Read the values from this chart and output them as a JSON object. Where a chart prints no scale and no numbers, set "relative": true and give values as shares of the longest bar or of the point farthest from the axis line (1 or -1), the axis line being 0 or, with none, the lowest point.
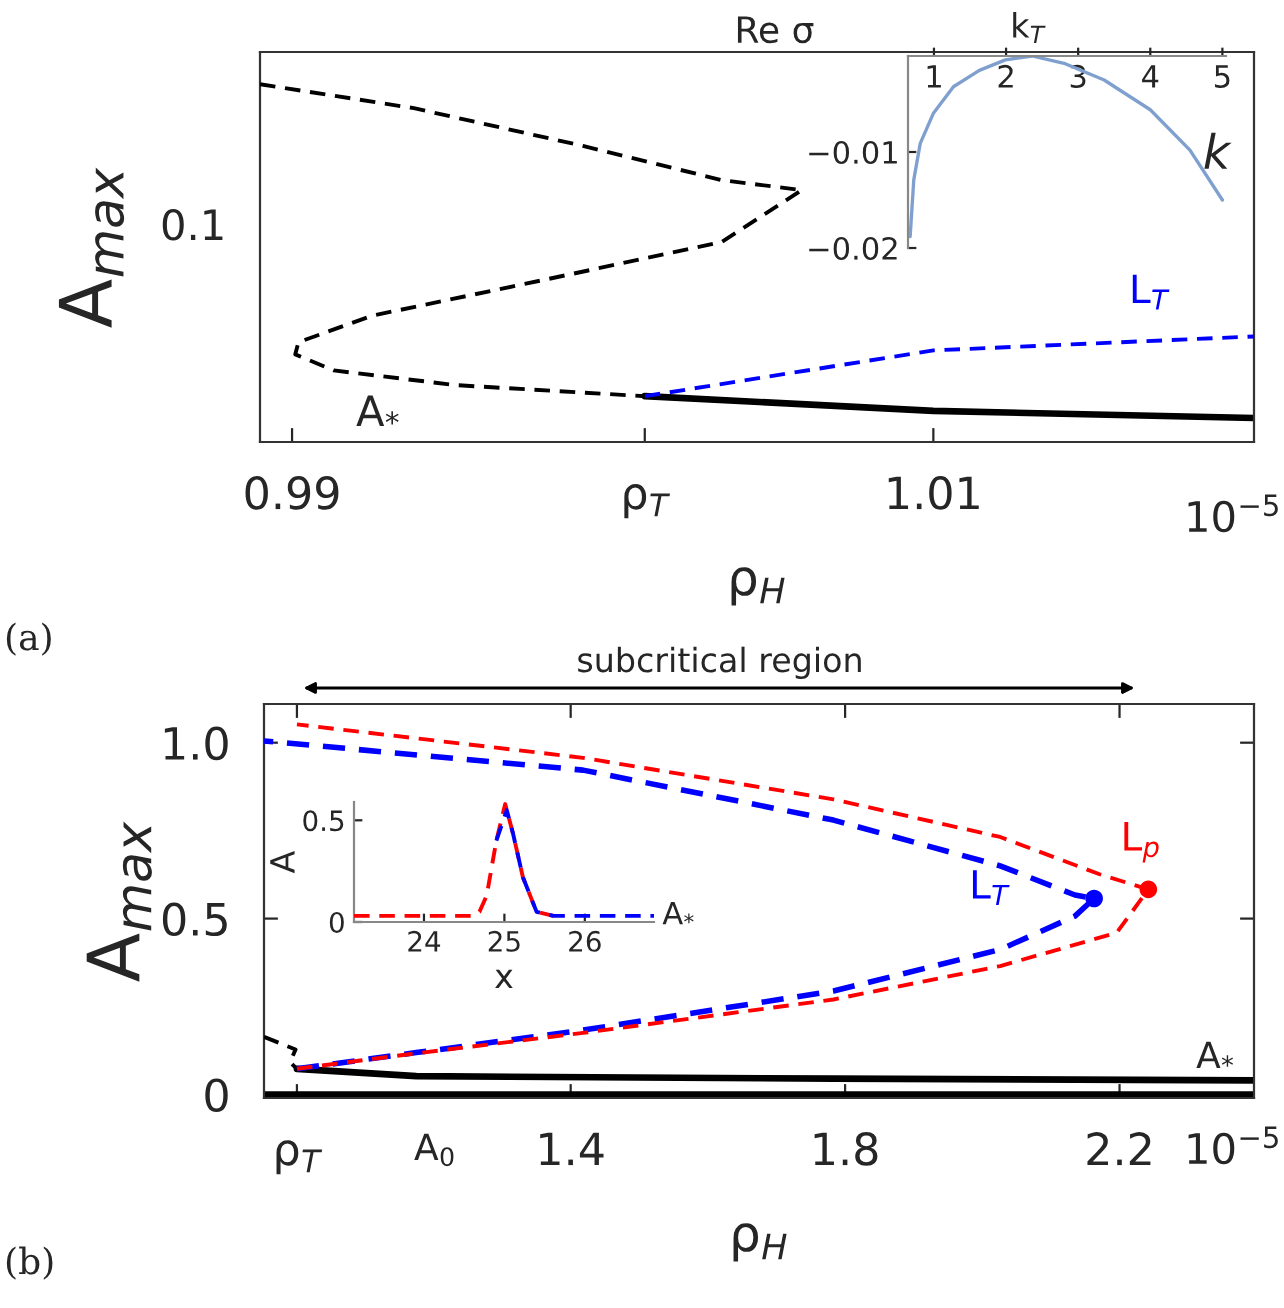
{
  "chart_data": [
    {
      "type": "line",
      "relative": true,
      "xlabel": "ρ$_{H}$",
      "ylabel": "A$_{max}$",
      "xlim": [
        0.989,
        1.02
      ],
      "xticks": [
        0.99,
        {
          "value": 1.001,
          "label": "ρ$_{T}$"
        },
        1.01
      ],
      "series": [
        {
          "color": "#000000",
          "line_style": "dashed",
          "x": [
            0.989,
            0.9938,
            0.9991,
            1.0034,
            1.0059,
            1.0034,
            0.9978,
            0.9925,
            0.9902,
            0.9901,
            0.9913,
            0.9951,
            1.001
          ],
          "values": [
            1,
            0.933,
            0.827,
            0.732,
            0.704,
            0.559,
            0.452,
            0.353,
            0.279,
            0.245,
            0.2,
            0.159,
            0.128
          ]
        },
        {
          "color": "#000000",
          "line_style": "solid",
          "x": [
            1.001,
            1.01,
            1.02
          ],
          "values": [
            0.128,
            0.087,
            0.067
          ]
        },
        {
          "name": "L$_{T}$",
          "color": "#0000ff",
          "line_style": "dashed",
          "x": [
            1.001,
            1.01,
            1.02
          ],
          "values": [
            0.128,
            0.256,
            0.295
          ]
        }
      ],
      "annotations": [
        "(a)",
        "10$^{−5}$",
        "A$_{*}$",
        "0.1"
      ]
    },
    {
      "type": "line",
      "xlabel": "k",
      "ylabel": "Re σ",
      "xlim": [
        0.64,
        5.05
      ],
      "ylim": [
        -0.02,
        0
      ],
      "xticks": [
        1,
        2,
        3,
        4,
        5
      ],
      "yticks": [
        {
          "value": -0.01,
          "label": "−0.01"
        },
        {
          "value": -0.02,
          "label": "−0.02"
        }
      ],
      "series": [
        {
          "color": "#7fa0cf",
          "line_style": "solid",
          "x": [
            0.67,
            0.72,
            0.81,
            0.99,
            1.27,
            1.63,
            1.99,
            2.36,
            2.82,
            3.36,
            4.0,
            4.55,
            5.0
          ],
          "values": [
            -0.0188,
            -0.0129,
            -0.0091,
            -0.006,
            -0.0032,
            -0.0015,
            -0.0004,
            0,
            -0.0008,
            -0.0025,
            -0.0056,
            -0.0098,
            -0.015
          ]
        }
      ],
      "annotations": [
        {
          "text": "k$_{T}$",
          "x": 2.3,
          "y": 0
        }
      ]
    },
    {
      "type": "line",
      "xlabel": "ρ$_{H}$",
      "ylabel": "A$_{max}$",
      "xlim": [
        0.953,
        2.396
      ],
      "ylim": [
        -0.01,
        1.11
      ],
      "xticks": [
        {
          "value": 1.001,
          "label": "ρ$_{T}$"
        },
        1.4,
        1.8,
        2.2
      ],
      "yticks": [
        0,
        0.5,
        {
          "value": 1,
          "label": "1.0"
        }
      ],
      "series": [
        {
          "name": "L$_{p}$",
          "color": "#ff0000",
          "line_style": "dashed",
          "x": [
            1.001,
            1.175,
            1.418,
            1.783,
            2.026,
            2.196,
            2.242,
            2.171,
            2.026,
            1.783,
            1.418,
            1.001
          ],
          "values": [
            0.073,
            0.117,
            0.175,
            0.27,
            0.365,
            0.46,
            0.583,
            0.626,
            0.732,
            0.839,
            0.957,
            1.052
          ]
        },
        {
          "name": "L$_{T}$",
          "color": "#0000ff",
          "line_style": "dashed",
          "x": [
            1.001,
            1.175,
            1.418,
            1.783,
            2.026,
            2.135,
            2.163,
            2.135,
            2.026,
            1.783,
            1.418,
            0.953
          ],
          "values": [
            0.073,
            0.119,
            0.183,
            0.294,
            0.412,
            0.507,
            0.557,
            0.567,
            0.65,
            0.78,
            0.922,
            1.005
          ]
        },
        {
          "type": "scatter",
          "marker": "circle",
          "color": "#ff0000",
          "x": [
            2.242
          ],
          "values": [
            0.583
          ]
        },
        {
          "type": "scatter",
          "marker": "circle",
          "color": "#0000ff",
          "x": [
            2.163
          ],
          "values": [
            0.557
          ]
        },
        {
          "color": "#000000",
          "line_style": "dashed",
          "x": [
            0.953,
            0.999,
            0.991,
            1.001
          ],
          "values": [
            0.164,
            0.128,
            0.092,
            0.073
          ]
        },
        {
          "color": "#000000",
          "line_style": "solid",
          "x": [
            1.001,
            1.175,
            1.783,
            2.396
          ],
          "values": [
            0.073,
            0.052,
            0.045,
            0.04
          ]
        },
        {
          "color": "#000000",
          "line_style": "solid",
          "x": [
            0.953,
            2.396
          ],
          "values": [
            0,
            0
          ]
        }
      ],
      "annotations": [
        "(b)",
        "10$^{−5}$",
        {
          "text": "A$_{*}$",
          "x": 2.34,
          "y": 0.04
        },
        {
          "text": "A$_{0}$",
          "x": 1.17,
          "y": 0
        },
        "subcritical region"
      ]
    },
    {
      "type": "line",
      "xlabel": "x",
      "ylabel": "A",
      "xlim": [
        23.13,
        26.86
      ],
      "ylim": [
        0,
        0.59
      ],
      "xticks": [
        24,
        25,
        26
      ],
      "yticks": [
        0,
        0.5
      ],
      "series": [
        {
          "color": "#0000ff",
          "line_style": "dashed",
          "x": [
            24.9,
            25.03,
            25.11,
            25.23,
            25.4,
            25.61,
            26.86
          ],
          "values": [
            0.4,
            0.55,
            0.43,
            0.22,
            0.05,
            0.03,
            0.03
          ]
        },
        {
          "color": "#ff0000",
          "line_style": "dashed",
          "x": [
            23.13,
            24.6,
            24.69,
            24.78,
            24.9,
            25.01,
            25.11,
            25.23,
            25.4,
            25.61
          ],
          "values": [
            0.03,
            0.03,
            0.05,
            0.13,
            0.4,
            0.58,
            0.43,
            0.22,
            0.05,
            0.03
          ]
        }
      ],
      "annotations": [
        {
          "text": "A$_{*}$",
          "x": 26.86,
          "y": 0.03
        }
      ]
    }
  ]
}
